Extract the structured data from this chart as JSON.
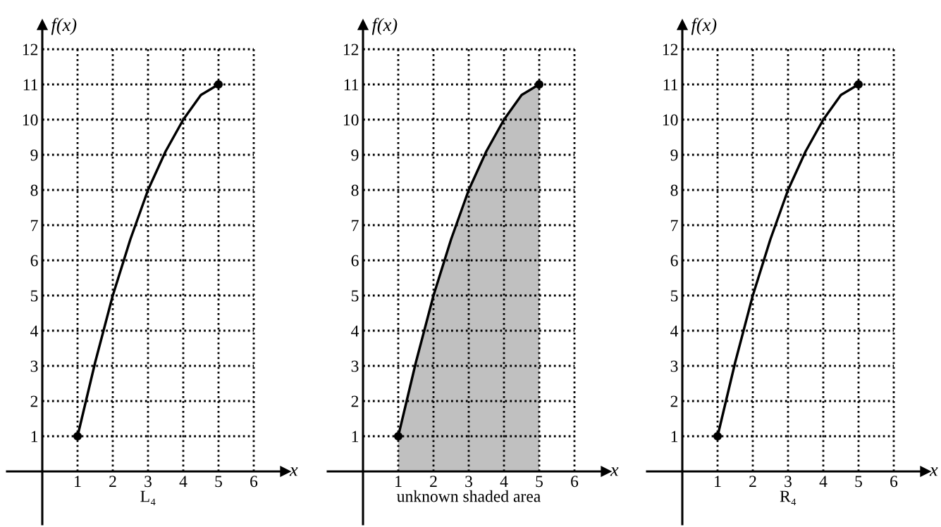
{
  "chart_data": [
    {
      "type": "line",
      "xlabel": "x",
      "ylabel": "f(x)",
      "annotations": [
        "L₄"
      ],
      "xlim": [
        -1,
        6.9
      ],
      "ylim": [
        -1.5,
        12.7
      ],
      "xticks": [
        1,
        2,
        3,
        4,
        5,
        6
      ],
      "yticks": [
        1,
        2,
        3,
        4,
        5,
        6,
        7,
        8,
        9,
        10,
        11,
        12
      ],
      "grid": true,
      "series": [
        {
          "color": "#000000",
          "x": [
            1,
            1.5,
            2,
            2.5,
            3,
            3.5,
            4,
            4.5,
            5
          ],
          "values": [
            1,
            3.1,
            5,
            6.6,
            8,
            9.1,
            10,
            10.7,
            11
          ]
        },
        {
          "type": "scatter",
          "color": "#000000",
          "x": [
            1,
            5
          ],
          "values": [
            1,
            11
          ]
        }
      ]
    },
    {
      "type": "area",
      "xlabel": "x",
      "ylabel": "f(x)",
      "annotations": [
        "unknown shaded area"
      ],
      "xlim": [
        -1,
        6.9
      ],
      "ylim": [
        -1.5,
        12.7
      ],
      "xticks": [
        1,
        2,
        3,
        4,
        5,
        6
      ],
      "yticks": [
        1,
        2,
        3,
        4,
        5,
        6,
        7,
        8,
        9,
        10,
        11,
        12
      ],
      "grid": true,
      "series": [
        {
          "color": "#c0c0c0",
          "x": [
            1,
            1.5,
            2,
            2.5,
            3,
            3.5,
            4,
            4.5,
            5
          ],
          "values": [
            1,
            3.1,
            5,
            6.6,
            8,
            9.1,
            10,
            10.7,
            11
          ]
        },
        {
          "type": "scatter",
          "color": "#000000",
          "x": [
            1,
            5
          ],
          "values": [
            1,
            11
          ]
        }
      ]
    },
    {
      "type": "line",
      "xlabel": "x",
      "ylabel": "f(x)",
      "annotations": [
        "R₄"
      ],
      "xlim": [
        -1,
        6.9
      ],
      "ylim": [
        -1.5,
        12.7
      ],
      "xticks": [
        1,
        2,
        3,
        4,
        5,
        6
      ],
      "yticks": [
        1,
        2,
        3,
        4,
        5,
        6,
        7,
        8,
        9,
        10,
        11,
        12
      ],
      "grid": true,
      "series": [
        {
          "color": "#000000",
          "x": [
            1,
            1.5,
            2,
            2.5,
            3,
            3.5,
            4,
            4.5,
            5
          ],
          "values": [
            1,
            3.1,
            5,
            6.6,
            8,
            9.1,
            10,
            10.7,
            11
          ]
        },
        {
          "type": "scatter",
          "color": "#000000",
          "x": [
            1,
            5
          ],
          "values": [
            1,
            11
          ]
        }
      ]
    }
  ]
}
